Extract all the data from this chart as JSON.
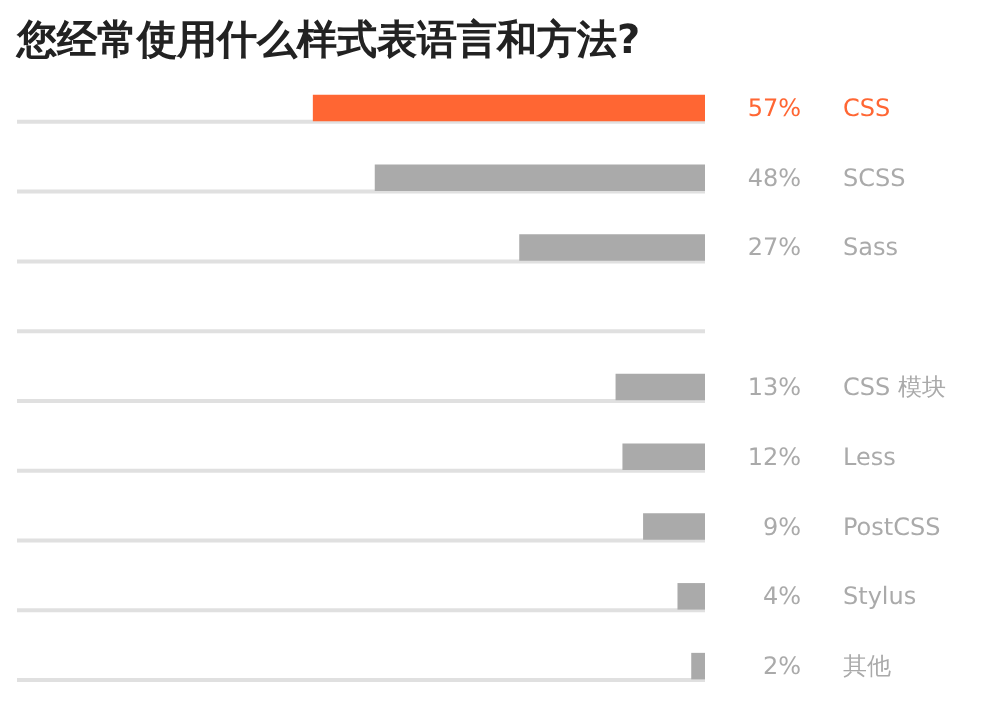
{
  "chart_data": {
    "type": "bar",
    "orientation": "horizontal",
    "title": "您经常使用什么样式表语言和方法?",
    "categories": [
      "CSS",
      "SCSS",
      "Sass",
      null,
      "CSS 模块",
      "Less",
      "PostCSS",
      "Stylus",
      "其他"
    ],
    "values": [
      57,
      48,
      27,
      null,
      13,
      12,
      9,
      4,
      2
    ],
    "value_labels": [
      "57%",
      "48%",
      "27%",
      null,
      "13%",
      "12%",
      "9%",
      "4%",
      "2%"
    ],
    "colors": [
      "#ff6633",
      "#aaaaaa",
      "#aaaaaa",
      "#aaaaaa",
      "#aaaaaa",
      "#aaaaaa",
      "#aaaaaa",
      "#aaaaaa",
      "#aaaaaa"
    ],
    "xlim": [
      100,
      0
    ],
    "grid": false
  }
}
